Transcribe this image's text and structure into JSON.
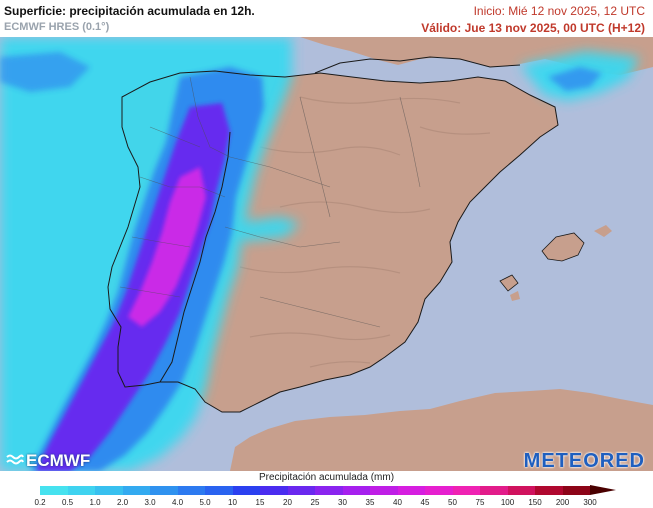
{
  "header": {
    "title": "Superficie: precipitación acumulada en 12h.",
    "model": "ECMWF HRES (0.1°)",
    "init": "Inicio: Mié 12 nov 2025, 12 UTC",
    "valid": "Válido: Jue 13 nov 2025, 00 UTC (H+12)"
  },
  "logos": {
    "left": "ECMWF",
    "right": "METEORED"
  },
  "legend": {
    "title": "Precipitación acumulada (mm)",
    "ticks": [
      "0.2",
      "0.5",
      "1.0",
      "2.0",
      "3.0",
      "4.0",
      "5.0",
      "10",
      "15",
      "20",
      "25",
      "30",
      "35",
      "40",
      "45",
      "50",
      "75",
      "100",
      "150",
      "200",
      "300"
    ],
    "colors": [
      "#46e2ef",
      "#3fd3f0",
      "#38c0ef",
      "#33aaf0",
      "#2f92ef",
      "#2d7af0",
      "#2a63f0",
      "#2b40f0",
      "#4a2cf0",
      "#6a28ef",
      "#8a24ef",
      "#a620ee",
      "#bf1ee6",
      "#d61ee0",
      "#e61fcf",
      "#ef22b3",
      "#e21c8a",
      "#d0125e",
      "#b0082f",
      "#8d0418",
      "#4a0000"
    ]
  },
  "map": {
    "colors": {
      "sea": "#b0bedb",
      "land": "#c79f8d",
      "precip_light": "#3ad8f0",
      "precip_mid": "#2f84ef",
      "precip_heavy": "#6a27ef",
      "precip_extreme": "#d62be6"
    }
  }
}
